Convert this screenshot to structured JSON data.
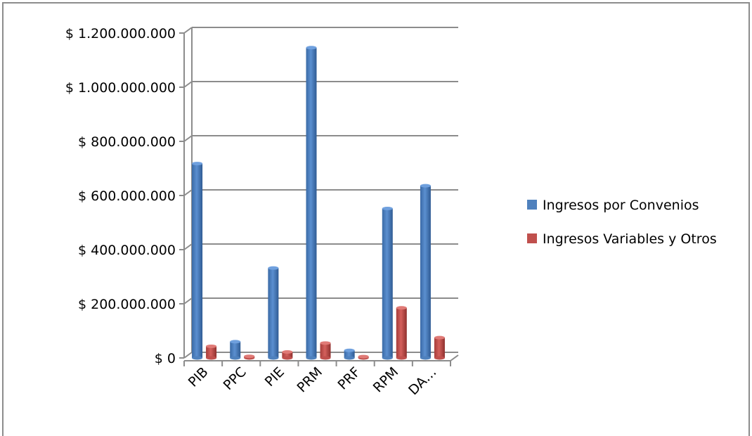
{
  "chart_data": {
    "type": "bar",
    "categories": [
      "PIB",
      "PPC",
      "PIE",
      "PRM",
      "PRF",
      "RPM",
      "DA…"
    ],
    "series": [
      {
        "name": "Ingresos por Convenios",
        "color": "#4f81bd",
        "values": [
          718000000,
          60000000,
          332000000,
          1146000000,
          28000000,
          552000000,
          636000000
        ]
      },
      {
        "name": "Ingresos Variables y Otros",
        "color": "#c0504d",
        "values": [
          43000000,
          6000000,
          22000000,
          55000000,
          5000000,
          185000000,
          75000000
        ]
      }
    ],
    "y_ticks": [
      "$ 0",
      "$ 200.000.000",
      "$ 400.000.000",
      "$ 600.000.000",
      "$ 800.000.000",
      "$ 1.000.000.000",
      "$ 1.200.000.000"
    ],
    "ylim": [
      0,
      1200000000
    ],
    "y_step": 200000000,
    "grid": true,
    "legend_position": "right",
    "title": "",
    "xlabel": "",
    "ylabel": ""
  }
}
